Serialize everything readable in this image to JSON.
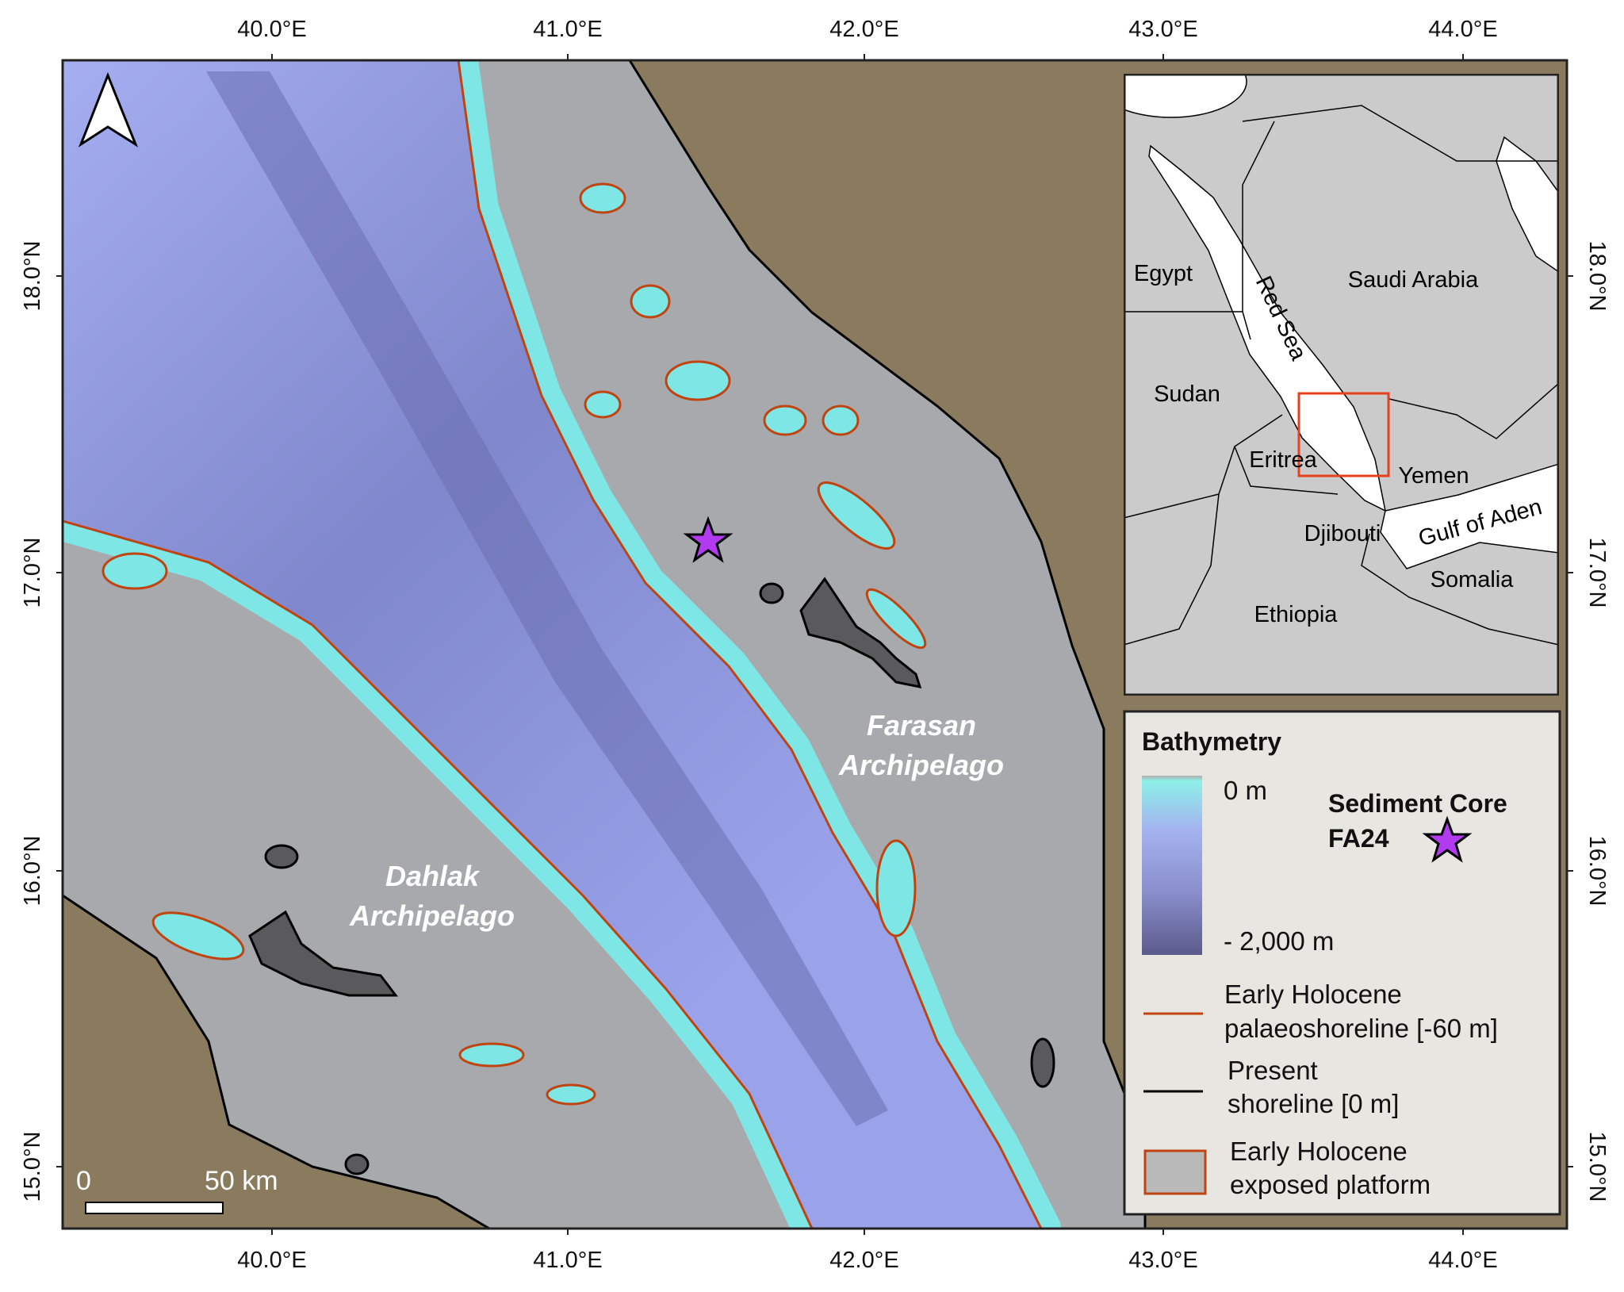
{
  "map": {
    "axes": {
      "longitude_ticks": [
        "40.0°E",
        "41.0°E",
        "42.0°E",
        "43.0°E",
        "44.0°E"
      ],
      "latitude_ticks": [
        "18.0°N",
        "17.0°N",
        "16.0°N",
        "15.0°N"
      ]
    },
    "labels": {
      "farasan_line1": "Farasan",
      "farasan_line2": "Archipelago",
      "dahlak_line1": "Dahlak",
      "dahlak_line2": "Archipelago"
    },
    "scale_bar": {
      "start": "0",
      "end": "50 km"
    },
    "north_arrow": "north-arrow-icon",
    "sediment_core_marker": "star-icon",
    "colors": {
      "land": "#8a7b5e",
      "platform": "#a8a9ac",
      "shallow_sea": "#7fe6e6",
      "sea": "#9aa3ea",
      "deep_sea": "#5c5f98",
      "palaeoshoreline": "#c0440f",
      "present_shoreline": "#000000",
      "core_marker": "#b23bf0",
      "islands": "#5a5a5c"
    }
  },
  "inset": {
    "countries": [
      "Egypt",
      "Saudi Arabia",
      "Sudan",
      "Eritrea",
      "Yemen",
      "Djibouti",
      "Somalia",
      "Ethiopia"
    ],
    "water": [
      "Red Sea",
      "Gulf of Aden"
    ],
    "extent_box_color": "#e8401c"
  },
  "legend": {
    "title": "Bathymetry",
    "gradient_top": "0 m",
    "gradient_bottom": "- 2,000 m",
    "core_line1": "Sediment Core",
    "core_line2": "FA24",
    "palaeo_line1": "Early Holocene",
    "palaeo_line2": "palaeoshoreline [-60 m]",
    "present_line1": "Present",
    "present_line2": "shoreline [0 m]",
    "platform_line1": "Early Holocene",
    "platform_line2": "exposed platform"
  }
}
